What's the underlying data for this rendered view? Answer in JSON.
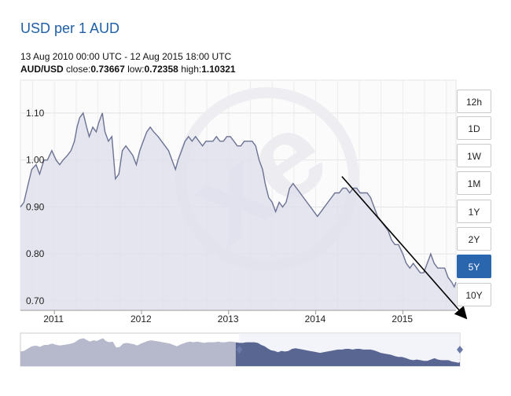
{
  "header": {
    "title": "USD per 1 AUD",
    "date_range": "13 Aug 2010 00:00 UTC - 12 Aug 2015 18:00 UTC",
    "pair": "AUD/USD",
    "close_label": "close:",
    "close_value": "0.73667",
    "low_label": "low:",
    "low_value": "0.72358",
    "high_label": "high:",
    "high_value": "1.10321"
  },
  "range_buttons": [
    {
      "label": "12h"
    },
    {
      "label": "1D"
    },
    {
      "label": "1W"
    },
    {
      "label": "1M"
    },
    {
      "label": "1Y"
    },
    {
      "label": "2Y"
    },
    {
      "label": "5Y"
    },
    {
      "label": "10Y"
    }
  ],
  "active_range": "5Y",
  "colors": {
    "line": "#6c7393",
    "area": "#dfe1ec",
    "nav_selected": "#5a6692",
    "nav_unselected": "#b5b9cb",
    "active_button": "#2a66ad",
    "title": "#1f5fa8"
  },
  "chart_data": {
    "type": "area",
    "y_ticks": [
      "1.10",
      "1.00",
      "0.90",
      "0.80",
      "0.70"
    ],
    "x_ticks": [
      "2011",
      "2012",
      "2013",
      "2014",
      "2015"
    ],
    "ylim": [
      0.68,
      1.17
    ],
    "grid": true,
    "series": [
      {
        "values": [
          [
            2010.61,
            0.9
          ],
          [
            2010.65,
            0.91
          ],
          [
            2010.7,
            0.95
          ],
          [
            2010.74,
            0.98
          ],
          [
            2010.79,
            0.99
          ],
          [
            2010.83,
            0.97
          ],
          [
            2010.88,
            1.0
          ],
          [
            2010.92,
            1.0
          ],
          [
            2010.97,
            1.02
          ],
          [
            2011.02,
            1.0
          ],
          [
            2011.06,
            0.99
          ],
          [
            2011.1,
            1.0
          ],
          [
            2011.15,
            1.01
          ],
          [
            2011.19,
            1.02
          ],
          [
            2011.23,
            1.04
          ],
          [
            2011.26,
            1.07
          ],
          [
            2011.29,
            1.09
          ],
          [
            2011.33,
            1.1
          ],
          [
            2011.37,
            1.07
          ],
          [
            2011.4,
            1.05
          ],
          [
            2011.44,
            1.07
          ],
          [
            2011.48,
            1.06
          ],
          [
            2011.51,
            1.08
          ],
          [
            2011.55,
            1.1
          ],
          [
            2011.58,
            1.06
          ],
          [
            2011.62,
            1.04
          ],
          [
            2011.66,
            1.05
          ],
          [
            2011.7,
            0.96
          ],
          [
            2011.74,
            0.97
          ],
          [
            2011.78,
            1.02
          ],
          [
            2011.82,
            1.03
          ],
          [
            2011.86,
            1.02
          ],
          [
            2011.9,
            1.01
          ],
          [
            2011.94,
            0.99
          ],
          [
            2011.98,
            1.02
          ],
          [
            2012.02,
            1.04
          ],
          [
            2012.06,
            1.06
          ],
          [
            2012.1,
            1.07
          ],
          [
            2012.14,
            1.06
          ],
          [
            2012.19,
            1.05
          ],
          [
            2012.23,
            1.04
          ],
          [
            2012.27,
            1.03
          ],
          [
            2012.31,
            1.02
          ],
          [
            2012.35,
            1.0
          ],
          [
            2012.39,
            0.98
          ],
          [
            2012.42,
            1.0
          ],
          [
            2012.46,
            1.02
          ],
          [
            2012.5,
            1.04
          ],
          [
            2012.54,
            1.05
          ],
          [
            2012.58,
            1.04
          ],
          [
            2012.62,
            1.05
          ],
          [
            2012.66,
            1.04
          ],
          [
            2012.7,
            1.03
          ],
          [
            2012.74,
            1.04
          ],
          [
            2012.78,
            1.04
          ],
          [
            2012.82,
            1.04
          ],
          [
            2012.86,
            1.05
          ],
          [
            2012.9,
            1.04
          ],
          [
            2012.94,
            1.04
          ],
          [
            2012.98,
            1.05
          ],
          [
            2013.02,
            1.05
          ],
          [
            2013.06,
            1.04
          ],
          [
            2013.1,
            1.03
          ],
          [
            2013.14,
            1.03
          ],
          [
            2013.18,
            1.04
          ],
          [
            2013.23,
            1.04
          ],
          [
            2013.27,
            1.04
          ],
          [
            2013.31,
            1.03
          ],
          [
            2013.35,
            1.0
          ],
          [
            2013.39,
            0.98
          ],
          [
            2013.42,
            0.95
          ],
          [
            2013.46,
            0.92
          ],
          [
            2013.5,
            0.91
          ],
          [
            2013.54,
            0.89
          ],
          [
            2013.58,
            0.91
          ],
          [
            2013.62,
            0.9
          ],
          [
            2013.66,
            0.91
          ],
          [
            2013.7,
            0.94
          ],
          [
            2013.74,
            0.95
          ],
          [
            2013.78,
            0.94
          ],
          [
            2013.82,
            0.93
          ],
          [
            2013.86,
            0.92
          ],
          [
            2013.9,
            0.91
          ],
          [
            2013.94,
            0.9
          ],
          [
            2013.98,
            0.89
          ],
          [
            2014.02,
            0.88
          ],
          [
            2014.06,
            0.89
          ],
          [
            2014.1,
            0.9
          ],
          [
            2014.14,
            0.91
          ],
          [
            2014.18,
            0.92
          ],
          [
            2014.22,
            0.93
          ],
          [
            2014.27,
            0.93
          ],
          [
            2014.31,
            0.94
          ],
          [
            2014.35,
            0.94
          ],
          [
            2014.39,
            0.93
          ],
          [
            2014.43,
            0.94
          ],
          [
            2014.47,
            0.94
          ],
          [
            2014.51,
            0.93
          ],
          [
            2014.55,
            0.93
          ],
          [
            2014.59,
            0.93
          ],
          [
            2014.63,
            0.92
          ],
          [
            2014.67,
            0.9
          ],
          [
            2014.71,
            0.88
          ],
          [
            2014.75,
            0.87
          ],
          [
            2014.79,
            0.86
          ],
          [
            2014.83,
            0.85
          ],
          [
            2014.87,
            0.83
          ],
          [
            2014.91,
            0.82
          ],
          [
            2014.95,
            0.82
          ],
          [
            2015.0,
            0.8
          ],
          [
            2015.04,
            0.78
          ],
          [
            2015.08,
            0.77
          ],
          [
            2015.12,
            0.78
          ],
          [
            2015.16,
            0.77
          ],
          [
            2015.2,
            0.76
          ],
          [
            2015.24,
            0.76
          ],
          [
            2015.28,
            0.78
          ],
          [
            2015.32,
            0.8
          ],
          [
            2015.36,
            0.78
          ],
          [
            2015.4,
            0.77
          ],
          [
            2015.44,
            0.77
          ],
          [
            2015.48,
            0.77
          ],
          [
            2015.52,
            0.75
          ],
          [
            2015.56,
            0.74
          ],
          [
            2015.59,
            0.73
          ],
          [
            2015.61,
            0.74
          ]
        ]
      }
    ],
    "annotations": [
      {
        "type": "trend-arrow",
        "from": [
          2014.3,
          0.965
        ],
        "to": [
          2015.72,
          0.665
        ]
      }
    ]
  }
}
